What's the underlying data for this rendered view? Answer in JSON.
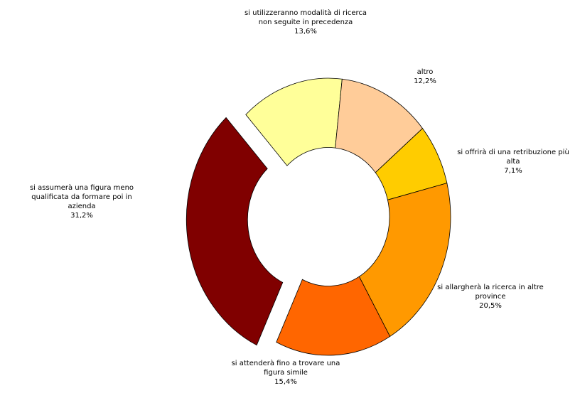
{
  "chart_data": {
    "type": "donut",
    "categories": [
      "si utilizzeranno modalità di ricerca non seguite in precedenza",
      "altro",
      "si offrirà di una retribuzione più alta",
      "si allargherà la ricerca in altre province",
      "si attenderà fino a trovare una figura simile",
      "si assumerà una figura meno qualificata da formare poi in azienda"
    ],
    "values": [
      13.6,
      12.2,
      7.1,
      20.5,
      15.4,
      31.2
    ],
    "value_labels": [
      "13,6%",
      "12,2%",
      "7,1%",
      "20,5%",
      "15,4%",
      "31,2%"
    ],
    "colors": [
      "#FFFF99",
      "#FFCC99",
      "#FFCC00",
      "#FF9900",
      "#FF6600",
      "#800000"
    ],
    "exploded": [
      false,
      false,
      false,
      false,
      false,
      true
    ]
  }
}
